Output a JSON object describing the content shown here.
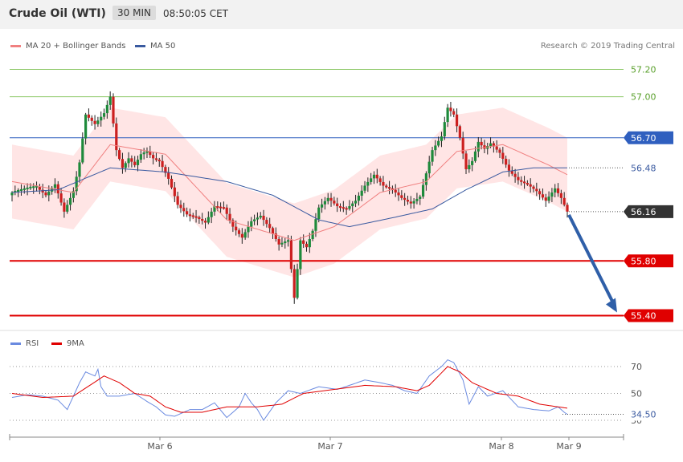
{
  "header": {
    "title": "Crude Oil (WTI)",
    "timeframe": "30 MIN",
    "time": "08:50:05 CET"
  },
  "legend": {
    "ma20": "MA 20 + Bollinger Bands",
    "ma50": "MA 50",
    "rsi": "RSI",
    "rsi_ma": "9MA"
  },
  "credit": "Research © 2019 Trading Central",
  "colors": {
    "bull": "#1e8a3b",
    "bear": "#cc1f1f",
    "band": "#ffdcdc",
    "ma20": "#f08080",
    "ma50": "#3a5aa0",
    "resistance": "#8cc866",
    "pivot": "#2f5fbf",
    "support": "#e00000",
    "arrow": "#2f5fa8"
  },
  "chart_data": [
    {
      "type": "candlestick",
      "x_labels": [
        "Mar 6",
        "Mar 7",
        "Mar 8",
        "Mar 9"
      ],
      "ylim": [
        55.35,
        57.25
      ],
      "levels": [
        {
          "value": 57.2,
          "label": "57.20",
          "kind": "resistance"
        },
        {
          "value": 57.0,
          "label": "57.00",
          "kind": "resistance"
        },
        {
          "value": 56.7,
          "label": "56.70",
          "kind": "pivot"
        },
        {
          "value": 56.48,
          "label": "56.48",
          "kind": "ma"
        },
        {
          "value": 56.16,
          "label": "56.16",
          "kind": "last"
        },
        {
          "value": 55.8,
          "label": "55.80",
          "kind": "support"
        },
        {
          "value": 55.4,
          "label": "55.40",
          "kind": "support"
        }
      ],
      "anchors": [
        [
          0,
          56.3
        ],
        [
          5,
          56.33
        ],
        [
          8,
          56.34
        ],
        [
          11,
          56.28
        ],
        [
          14,
          56.36
        ],
        [
          17,
          56.16
        ],
        [
          20,
          56.31
        ],
        [
          22,
          56.52
        ],
        [
          24,
          56.87
        ],
        [
          27,
          56.8
        ],
        [
          30,
          56.88
        ],
        [
          32,
          57.0
        ],
        [
          34,
          56.61
        ],
        [
          36,
          56.48
        ],
        [
          38,
          56.55
        ],
        [
          40,
          56.5
        ],
        [
          42,
          56.58
        ],
        [
          44,
          56.6
        ],
        [
          46,
          56.55
        ],
        [
          48,
          56.53
        ],
        [
          51,
          56.4
        ],
        [
          54,
          56.21
        ],
        [
          57,
          56.14
        ],
        [
          60,
          56.12
        ],
        [
          63,
          56.08
        ],
        [
          66,
          56.2
        ],
        [
          69,
          56.19
        ],
        [
          72,
          56.05
        ],
        [
          75,
          55.97
        ],
        [
          78,
          56.09
        ],
        [
          81,
          56.13
        ],
        [
          84,
          56.04
        ],
        [
          87,
          55.92
        ],
        [
          90,
          55.95
        ],
        [
          92,
          55.53
        ],
        [
          94,
          55.95
        ],
        [
          96,
          55.9
        ],
        [
          98,
          56.02
        ],
        [
          100,
          56.19
        ],
        [
          103,
          56.26
        ],
        [
          106,
          56.2
        ],
        [
          109,
          56.18
        ],
        [
          112,
          56.24
        ],
        [
          115,
          56.35
        ],
        [
          118,
          56.43
        ],
        [
          121,
          56.35
        ],
        [
          124,
          56.32
        ],
        [
          127,
          56.26
        ],
        [
          130,
          56.22
        ],
        [
          133,
          56.27
        ],
        [
          135,
          56.44
        ],
        [
          137,
          56.61
        ],
        [
          140,
          56.71
        ],
        [
          142,
          56.92
        ],
        [
          144,
          56.87
        ],
        [
          146,
          56.7
        ],
        [
          148,
          56.47
        ],
        [
          150,
          56.53
        ],
        [
          152,
          56.67
        ],
        [
          154,
          56.62
        ],
        [
          156,
          56.66
        ],
        [
          159,
          56.59
        ],
        [
          162,
          56.46
        ],
        [
          165,
          56.39
        ],
        [
          168,
          56.36
        ],
        [
          171,
          56.31
        ],
        [
          174,
          56.24
        ],
        [
          177,
          56.33
        ],
        [
          179,
          56.26
        ],
        [
          181,
          56.16
        ]
      ],
      "ma20": [
        [
          0,
          56.38
        ],
        [
          20,
          56.3
        ],
        [
          32,
          56.65
        ],
        [
          50,
          56.58
        ],
        [
          70,
          56.1
        ],
        [
          92,
          55.95
        ],
        [
          105,
          56.05
        ],
        [
          120,
          56.3
        ],
        [
          135,
          56.38
        ],
        [
          145,
          56.6
        ],
        [
          160,
          56.65
        ],
        [
          175,
          56.5
        ],
        [
          181,
          56.43
        ]
      ],
      "ma50": [
        [
          0,
          56.3
        ],
        [
          15,
          56.32
        ],
        [
          32,
          56.48
        ],
        [
          50,
          56.45
        ],
        [
          70,
          56.38
        ],
        [
          85,
          56.28
        ],
        [
          100,
          56.1
        ],
        [
          110,
          56.05
        ],
        [
          125,
          56.12
        ],
        [
          137,
          56.18
        ],
        [
          148,
          56.32
        ],
        [
          160,
          56.45
        ],
        [
          170,
          56.48
        ],
        [
          181,
          56.48
        ]
      ],
      "band_width": 0.27,
      "forecast": {
        "from": 56.16,
        "to": 55.4
      }
    },
    {
      "type": "line",
      "title": "RSI",
      "ylim": [
        25,
        80
      ],
      "y_ticks": [
        {
          "value": 70,
          "label": "70"
        },
        {
          "value": 50,
          "label": "50"
        },
        {
          "value": 30,
          "label": "30"
        }
      ],
      "last_label": "34.50",
      "series": [
        {
          "name": "RSI",
          "values": [
            [
              0,
              47
            ],
            [
              5,
              49
            ],
            [
              10,
              48
            ],
            [
              15,
              45
            ],
            [
              18,
              38
            ],
            [
              22,
              58
            ],
            [
              24,
              66
            ],
            [
              27,
              63
            ],
            [
              28,
              68
            ],
            [
              29,
              55
            ],
            [
              31,
              48
            ],
            [
              35,
              48
            ],
            [
              40,
              50
            ],
            [
              44,
              44
            ],
            [
              47,
              40
            ],
            [
              50,
              34
            ],
            [
              53,
              33
            ],
            [
              58,
              38
            ],
            [
              62,
              38
            ],
            [
              66,
              43
            ],
            [
              70,
              32
            ],
            [
              74,
              40
            ],
            [
              76,
              50
            ],
            [
              78,
              43
            ],
            [
              80,
              38
            ],
            [
              82,
              30
            ],
            [
              86,
              43
            ],
            [
              90,
              52
            ],
            [
              94,
              50
            ],
            [
              100,
              55
            ],
            [
              106,
              53
            ],
            [
              110,
              56
            ],
            [
              115,
              60
            ],
            [
              120,
              58
            ],
            [
              124,
              56
            ],
            [
              128,
              52
            ],
            [
              132,
              50
            ],
            [
              136,
              63
            ],
            [
              140,
              70
            ],
            [
              142,
              75
            ],
            [
              144,
              73
            ],
            [
              147,
              60
            ],
            [
              149,
              42
            ],
            [
              152,
              55
            ],
            [
              155,
              48
            ],
            [
              160,
              52
            ],
            [
              165,
              40
            ],
            [
              170,
              38
            ],
            [
              175,
              37
            ],
            [
              178,
              40
            ],
            [
              180,
              36
            ],
            [
              181,
              34.5
            ]
          ]
        },
        {
          "name": "9MA",
          "values": [
            [
              0,
              50
            ],
            [
              10,
              47
            ],
            [
              20,
              48
            ],
            [
              26,
              57
            ],
            [
              30,
              63
            ],
            [
              35,
              58
            ],
            [
              40,
              50
            ],
            [
              45,
              48
            ],
            [
              50,
              40
            ],
            [
              55,
              36
            ],
            [
              62,
              36
            ],
            [
              70,
              40
            ],
            [
              80,
              40
            ],
            [
              88,
              42
            ],
            [
              95,
              50
            ],
            [
              105,
              53
            ],
            [
              115,
              56
            ],
            [
              125,
              55
            ],
            [
              132,
              52
            ],
            [
              136,
              56
            ],
            [
              142,
              70
            ],
            [
              146,
              66
            ],
            [
              150,
              58
            ],
            [
              158,
              50
            ],
            [
              165,
              48
            ],
            [
              172,
              42
            ],
            [
              181,
              39
            ]
          ]
        }
      ]
    }
  ]
}
